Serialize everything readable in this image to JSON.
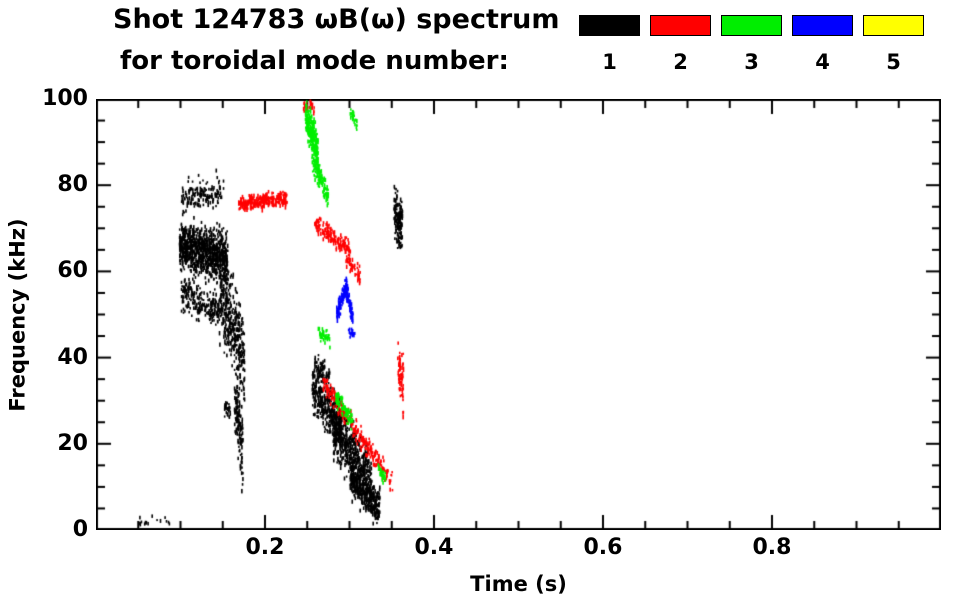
{
  "header": {
    "title": "Shot 124783 ωB(ω) spectrum",
    "subtitle": "for toroidal mode number:"
  },
  "legend": [
    {
      "label": "1",
      "color": "#000000"
    },
    {
      "label": "2",
      "color": "#ff0000"
    },
    {
      "label": "3",
      "color": "#00ee00"
    },
    {
      "label": "4",
      "color": "#0000ff"
    },
    {
      "label": "5",
      "color": "#ffff00"
    }
  ],
  "chart_data": {
    "type": "scatter",
    "title": "Shot 124783 ωB(ω) spectrum",
    "subtitle": "for toroidal mode number:",
    "xlabel": "Time (s)",
    "ylabel": "Frequency (kHz)",
    "xlim": [
      0,
      1.0
    ],
    "ylim": [
      0,
      100
    ],
    "xticks": [
      0.2,
      0.4,
      0.6,
      0.8
    ],
    "yticks": [
      0,
      20,
      40,
      60,
      80,
      100
    ],
    "xminor_step": 0.05,
    "yminor_step": 5,
    "grid": false,
    "legend_position": "top-right",
    "note": "Spectrogram-style scatter of mode activity; clusters give time range t0-t1 (s), center frequency drift f0-f1 (kHz), spread s (kHz), and point count n.",
    "series": [
      {
        "name": "1",
        "color": "#000000",
        "clusters": [
          {
            "t0": 0.098,
            "t1": 0.155,
            "f0": 66,
            "f1": 63,
            "s": 5.5,
            "n": 900
          },
          {
            "t0": 0.1,
            "t1": 0.15,
            "f0": 77,
            "f1": 79,
            "s": 3.5,
            "n": 140
          },
          {
            "t0": 0.1,
            "t1": 0.145,
            "f0": 55,
            "f1": 51,
            "s": 4,
            "n": 220
          },
          {
            "t0": 0.145,
            "t1": 0.175,
            "f0": 56,
            "f1": 40,
            "s": 10,
            "n": 380
          },
          {
            "t0": 0.163,
            "t1": 0.173,
            "f0": 30,
            "f1": 18,
            "s": 8,
            "n": 130
          },
          {
            "t0": 0.151,
            "t1": 0.158,
            "f0": 28,
            "f1": 27,
            "s": 2,
            "n": 30
          },
          {
            "t0": 0.255,
            "t1": 0.29,
            "f0": 33,
            "f1": 24,
            "s": 6,
            "n": 380
          },
          {
            "t0": 0.28,
            "t1": 0.325,
            "f0": 24,
            "f1": 12,
            "s": 6,
            "n": 480
          },
          {
            "t0": 0.3,
            "t1": 0.335,
            "f0": 12,
            "f1": 5,
            "s": 4,
            "n": 380
          },
          {
            "t0": 0.258,
            "t1": 0.276,
            "f0": 38,
            "f1": 36,
            "s": 2.5,
            "n": 60
          },
          {
            "t0": 0.352,
            "t1": 0.362,
            "f0": 73,
            "f1": 71,
            "s": 5.5,
            "n": 150
          },
          {
            "t0": 0.05,
            "t1": 0.09,
            "f0": 2,
            "f1": 2,
            "s": 1,
            "n": 16
          }
        ]
      },
      {
        "name": "2",
        "color": "#ff0000",
        "clusters": [
          {
            "t0": 0.168,
            "t1": 0.225,
            "f0": 75.5,
            "f1": 77,
            "s": 1.6,
            "n": 280
          },
          {
            "t0": 0.258,
            "t1": 0.3,
            "f0": 71,
            "f1": 65,
            "s": 2.2,
            "n": 150
          },
          {
            "t0": 0.268,
            "t1": 0.35,
            "f0": 34,
            "f1": 11,
            "s": 2.2,
            "n": 280
          },
          {
            "t0": 0.356,
            "t1": 0.363,
            "f0": 40,
            "f1": 33,
            "s": 6,
            "n": 70
          },
          {
            "t0": 0.243,
            "t1": 0.258,
            "f0": 99,
            "f1": 98,
            "s": 1.5,
            "n": 30
          },
          {
            "t0": 0.295,
            "t1": 0.312,
            "f0": 63,
            "f1": 59,
            "s": 2,
            "n": 45
          }
        ]
      },
      {
        "name": "3",
        "color": "#00ee00",
        "clusters": [
          {
            "t0": 0.247,
            "t1": 0.262,
            "f0": 96,
            "f1": 88,
            "s": 4,
            "n": 240
          },
          {
            "t0": 0.255,
            "t1": 0.274,
            "f0": 86,
            "f1": 77,
            "s": 3,
            "n": 130
          },
          {
            "t0": 0.262,
            "t1": 0.276,
            "f0": 46,
            "f1": 44,
            "s": 1.5,
            "n": 40
          },
          {
            "t0": 0.283,
            "t1": 0.303,
            "f0": 31,
            "f1": 25,
            "s": 2,
            "n": 85
          },
          {
            "t0": 0.332,
            "t1": 0.342,
            "f0": 14,
            "f1": 12,
            "s": 1.5,
            "n": 25
          },
          {
            "t0": 0.3,
            "t1": 0.308,
            "f0": 97,
            "f1": 94,
            "s": 2,
            "n": 25
          }
        ]
      },
      {
        "name": "4",
        "color": "#0000ff",
        "clusters": [
          {
            "t0": 0.284,
            "t1": 0.296,
            "f0": 50,
            "f1": 57,
            "s": 2,
            "n": 120
          },
          {
            "t0": 0.295,
            "t1": 0.303,
            "f0": 56,
            "f1": 49,
            "s": 2,
            "n": 85
          },
          {
            "t0": 0.298,
            "t1": 0.306,
            "f0": 46,
            "f1": 45,
            "s": 1.2,
            "n": 20
          }
        ]
      },
      {
        "name": "5",
        "color": "#ffff00",
        "clusters": []
      }
    ]
  }
}
